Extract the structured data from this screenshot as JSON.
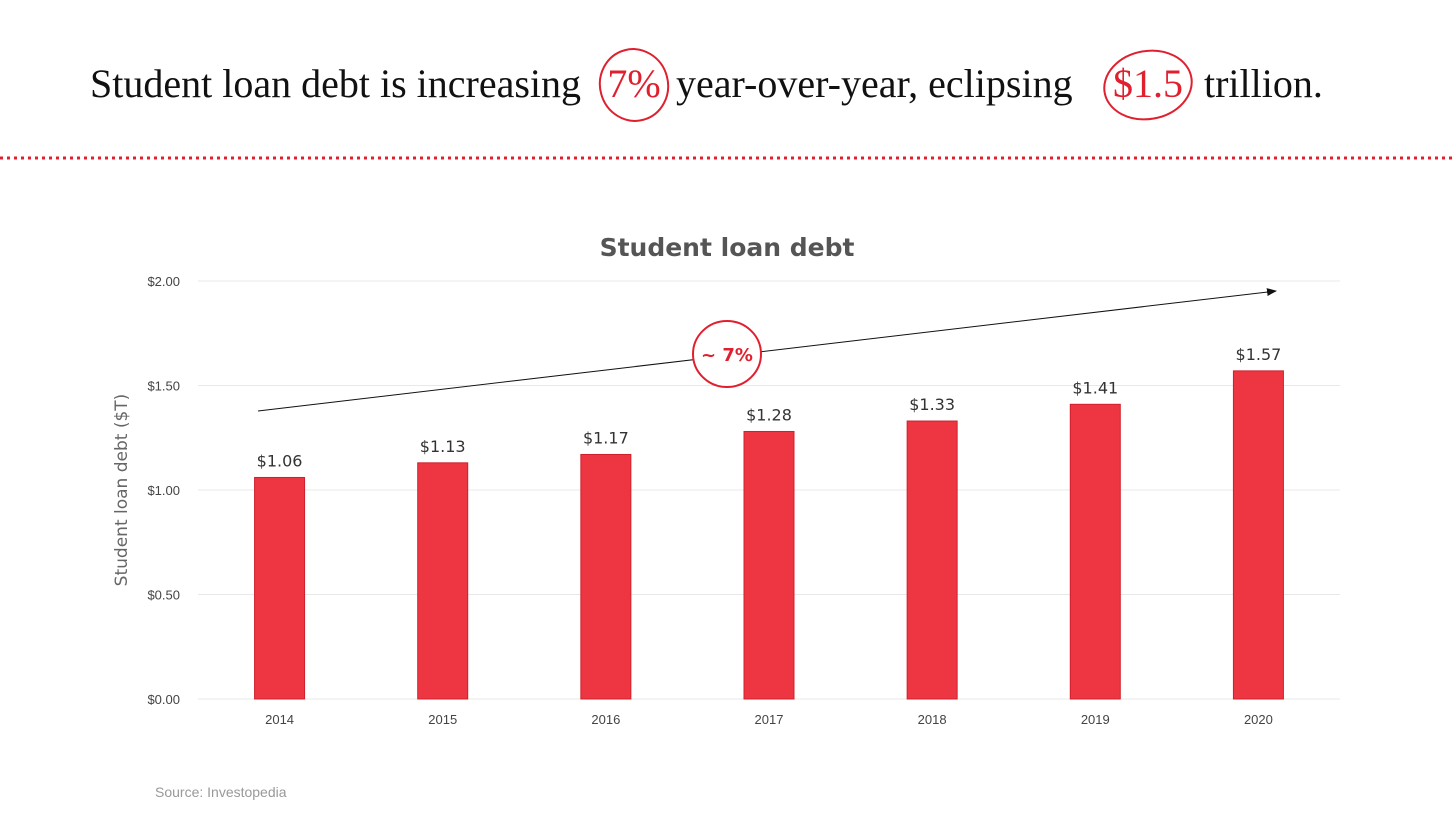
{
  "header": {
    "parts": [
      "Student loan debt is increasing",
      "7%",
      "year-over-year, eclipsing",
      "$1.5",
      "trillion."
    ]
  },
  "chart_data": {
    "type": "bar",
    "title": "Student loan debt",
    "y_label": "Student loan debt ($T)",
    "categories": [
      "2014",
      "2015",
      "2016",
      "2017",
      "2018",
      "2019",
      "2020"
    ],
    "values": [
      1.06,
      1.13,
      1.17,
      1.28,
      1.33,
      1.41,
      1.57
    ],
    "value_labels": [
      "$1.06",
      "$1.13",
      "$1.17",
      "$1.28",
      "$1.33",
      "$1.41",
      "$1.57"
    ],
    "color": "#ee3642",
    "ylim": [
      0,
      2
    ],
    "yticks": [
      {
        "value": 0,
        "label": "$0.00"
      },
      {
        "value": 0.5,
        "label": "$0.50"
      },
      {
        "value": 1,
        "label": "$1.00"
      },
      {
        "value": 1.5,
        "label": "$1.50"
      },
      {
        "value": 2,
        "label": "$2.00"
      }
    ],
    "grid": true,
    "annotation": "~ 7%"
  },
  "source": "Source: Investopedia"
}
